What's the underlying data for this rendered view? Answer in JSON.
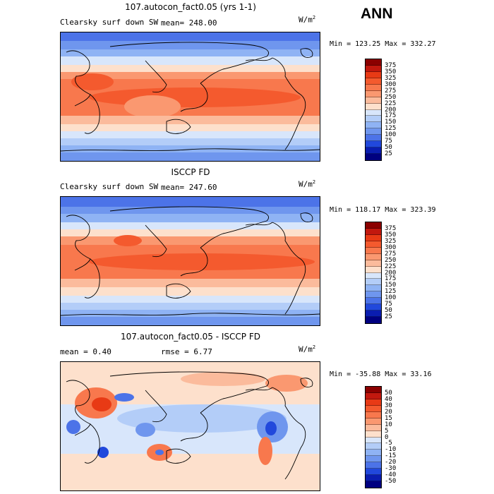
{
  "season": "ANN",
  "panels": [
    {
      "title": "107.autocon_fact0.05 (yrs 1-1)",
      "variable": "Clearsky surf down SW",
      "mean_text": "mean= 248.00",
      "units_base": "W/m",
      "units_exp": "2",
      "minmax": "Min = 123.25 Max = 332.27",
      "levels": [
        "375",
        "350",
        "325",
        "300",
        "275",
        "250",
        "225",
        "200",
        "175",
        "150",
        "125",
        "100",
        "75",
        "50",
        "25"
      ],
      "colors": [
        "#8b0000",
        "#c2180e",
        "#e83a15",
        "#f45a2e",
        "#f8784d",
        "#fa9870",
        "#fbbb9c",
        "#fde0cc",
        "#d8e6fb",
        "#b3cdf8",
        "#8fb3f4",
        "#6f96ee",
        "#4c73e8",
        "#2148dc",
        "#0a1db0",
        "#000080"
      ]
    },
    {
      "title": "ISCCP FD",
      "variable": "Clearsky surf down SW",
      "mean_text": "mean= 247.60",
      "units_base": "W/m",
      "units_exp": "2",
      "minmax": "Min = 118.17 Max = 323.39",
      "levels": [
        "375",
        "350",
        "325",
        "300",
        "275",
        "250",
        "225",
        "200",
        "175",
        "150",
        "125",
        "100",
        "75",
        "50",
        "25"
      ],
      "colors": [
        "#8b0000",
        "#c2180e",
        "#e83a15",
        "#f45a2e",
        "#f8784d",
        "#fa9870",
        "#fbbb9c",
        "#fde0cc",
        "#d8e6fb",
        "#b3cdf8",
        "#8fb3f4",
        "#6f96ee",
        "#4c73e8",
        "#2148dc",
        "#0a1db0",
        "#000080"
      ]
    },
    {
      "title": "107.autocon_fact0.05 - ISCCP FD",
      "variable": "",
      "mean_text": "mean =    0.40",
      "rmse_text": "rmse =    6.77",
      "units_base": "W/m",
      "units_exp": "2",
      "minmax": "Min = -35.88 Max =  33.16",
      "levels": [
        "50",
        "40",
        "30",
        "20",
        "15",
        "10",
        "5",
        "0",
        "-5",
        "-10",
        "-15",
        "-20",
        "-30",
        "-40",
        "-50"
      ],
      "colors": [
        "#8b0000",
        "#c2180e",
        "#e83a15",
        "#f45a2e",
        "#f8784d",
        "#fa9870",
        "#fbbb9c",
        "#fde0cc",
        "#d8e6fb",
        "#b3cdf8",
        "#8fb3f4",
        "#6f96ee",
        "#4c73e8",
        "#2148dc",
        "#0a1db0",
        "#000080"
      ]
    }
  ]
}
